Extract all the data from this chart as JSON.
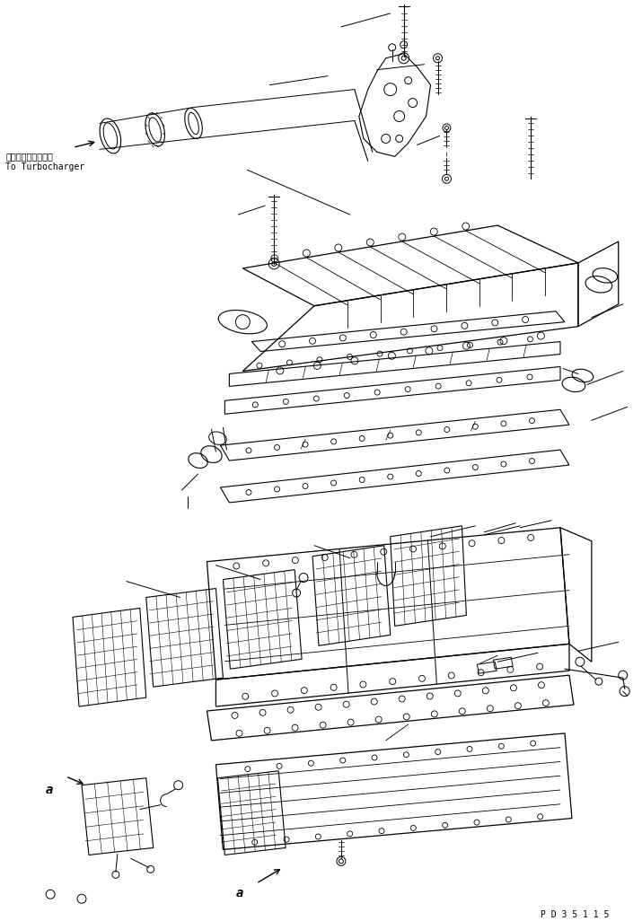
{
  "background_color": "#ffffff",
  "line_color": "#000000",
  "fig_width": 7.15,
  "fig_height": 10.26,
  "dpi": 100,
  "label_turbo_jp": "ターボチャージャヘ",
  "label_turbo_en": "To Turbocharger",
  "label_a1": "a",
  "label_a2": "a",
  "label_pd": "P D 3 5 1 1 5"
}
